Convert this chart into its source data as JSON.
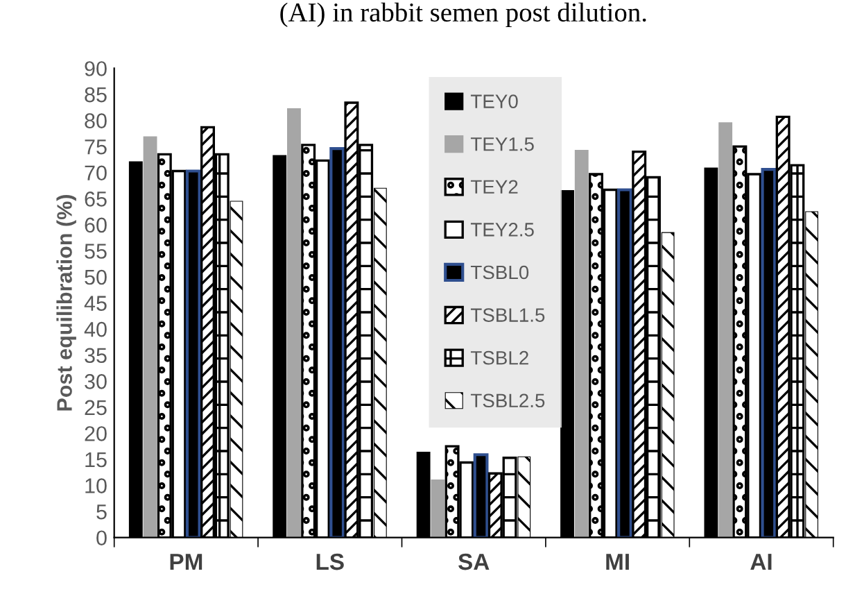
{
  "chart_data": {
    "type": "bar",
    "title": "(AI) in rabbit semen post dilution.",
    "ylabel": "Post equilibration (%)",
    "categories": [
      "PM",
      "LS",
      "SA",
      "MI",
      "AI"
    ],
    "series": [
      {
        "name": "TEY0",
        "color": "#000000",
        "values": [
          72,
          73.2,
          16.3,
          66.5,
          70.8
        ]
      },
      {
        "name": "TEY1.5",
        "color": "#a6a6a6",
        "values": [
          76.8,
          82.2,
          11,
          74.2,
          79.5
        ]
      },
      {
        "name": "TEY2",
        "color": "#000000",
        "values": [
          73.5,
          75.3,
          17.5,
          69.7,
          75
        ]
      },
      {
        "name": "TEY2.5",
        "color": "#ffffff",
        "values": [
          70.3,
          72.3,
          14.4,
          66.7,
          69.7
        ]
      },
      {
        "name": "TSBL0",
        "color": "#2f4f8f",
        "values": [
          70.3,
          74.6,
          15.9,
          66.7,
          70.6
        ]
      },
      {
        "name": "TSBL1.5",
        "color": "#000000",
        "values": [
          78.7,
          83.4,
          12.3,
          74,
          80.7
        ]
      },
      {
        "name": "TSBL2",
        "color": "#000000",
        "values": [
          73.5,
          75.3,
          15.3,
          69.1,
          71.4
        ]
      },
      {
        "name": "TSBL2.5",
        "color": "#000000",
        "values": [
          64.5,
          67,
          15.5,
          58.5,
          62.5
        ]
      }
    ],
    "ylim": [
      0,
      90
    ],
    "yticks": [
      0,
      5,
      10,
      15,
      20,
      25,
      30,
      35,
      40,
      45,
      50,
      55,
      60,
      65,
      70,
      75,
      80,
      85,
      90
    ],
    "grid": false,
    "legend": "top"
  }
}
